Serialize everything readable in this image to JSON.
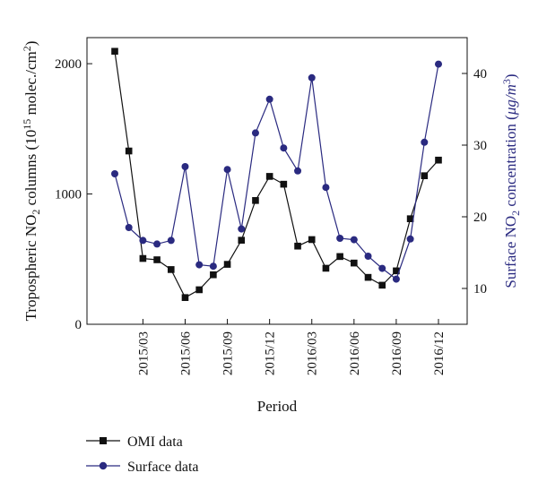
{
  "chart_data": {
    "type": "line",
    "xlabel": "Period",
    "ylabel_left": {
      "pre": "Tropospheric NO",
      "sub": "2",
      "mid": " columns (10",
      "sup": "15",
      "post": " molec./cm",
      "sup2": "2",
      "end": ")"
    },
    "ylabel_right": {
      "pre": "Surface NO",
      "sub": "2",
      "mid": " concentration (",
      "unit": "μg/m",
      "sup": "3",
      "end": ")"
    },
    "x_categories": [
      "2015/01",
      "2015/02",
      "2015/03",
      "2015/04",
      "2015/05",
      "2015/06",
      "2015/07",
      "2015/08",
      "2015/09",
      "2015/10",
      "2015/11",
      "2015/12",
      "2016/01",
      "2016/02",
      "2016/03",
      "2016/04",
      "2016/05",
      "2016/06",
      "2016/07",
      "2016/08",
      "2016/09",
      "2016/10",
      "2016/11",
      "2016/12"
    ],
    "x_tick_labels": [
      "2015/03",
      "2015/06",
      "2015/09",
      "2015/12",
      "2016/03",
      "2016/06",
      "2016/09",
      "2016/12"
    ],
    "x_tick_indices": [
      2,
      5,
      8,
      11,
      14,
      17,
      20,
      23
    ],
    "ylim_left": [
      0,
      2200
    ],
    "yticks_left": [
      0,
      1000,
      2000
    ],
    "ylim_right": [
      5,
      45
    ],
    "yticks_right": [
      10,
      20,
      30,
      40
    ],
    "series": [
      {
        "name": "OMI data",
        "axis": "left",
        "color": "#111111",
        "marker": "square",
        "values": [
          2095,
          1330,
          505,
          495,
          420,
          205,
          265,
          380,
          460,
          645,
          950,
          1135,
          1075,
          600,
          650,
          430,
          520,
          470,
          360,
          300,
          410,
          810,
          1140,
          1260
        ]
      },
      {
        "name": "Surface data",
        "axis": "right",
        "color": "#2a2a80",
        "marker": "circle",
        "values": [
          26.0,
          18.5,
          16.7,
          16.2,
          16.7,
          27.0,
          13.3,
          13.1,
          26.6,
          18.3,
          31.7,
          36.4,
          29.6,
          26.4,
          39.4,
          24.1,
          17.0,
          16.8,
          14.5,
          12.8,
          11.3,
          16.9,
          30.4,
          41.3
        ]
      }
    ],
    "legend": {
      "position": "bottom-left"
    }
  }
}
